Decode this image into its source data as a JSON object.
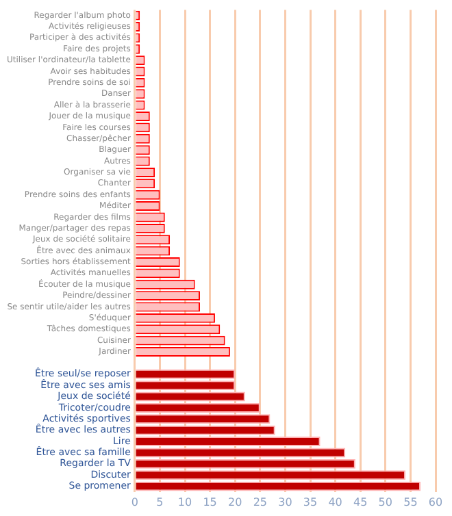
{
  "chart_data": {
    "type": "bar",
    "orientation": "horizontal",
    "categories": [
      "Regarder l'album photo",
      "Activités religieuses",
      "Participer à des activités",
      "Faire des projets",
      "Utiliser l'ordinateur/la tablette",
      "Avoir ses habitudes",
      "Prendre soins de soi",
      "Danser",
      "Aller à la brasserie",
      "Jouer de la musique",
      "Faire les courses",
      "Chasser/pêcher",
      "Blaguer",
      "Autres",
      "Organiser sa vie",
      "Chanter",
      "Prendre soins des enfants",
      "Méditer",
      "Regarder des films",
      "Manger/partager des repas",
      "Jeux de société solitaire",
      "Être avec des animaux",
      "Sorties hors établissement",
      "Activités manuelles",
      "Écouter de la musique",
      "Peindre/dessiner",
      "Se sentir utile/aider les autres",
      "S'éduquer",
      "Tâches domestiques",
      "Cuisiner",
      "Jardiner",
      null,
      "Être seul/se reposer",
      "Être avec ses amis",
      "Jeux de société",
      "Tricoter/coudre",
      "Activités sportives",
      "Être avec les autres",
      "Lire",
      "Être avec sa famille",
      "Regarder la TV",
      "Discuter",
      "Se promener"
    ],
    "series": [
      {
        "color": "#ffbfbf",
        "values": [
          1,
          1,
          1,
          1,
          2,
          2,
          2,
          2,
          2,
          3,
          3,
          3,
          3,
          3,
          4,
          4,
          5,
          5,
          6,
          6,
          7,
          7,
          9,
          9,
          12,
          13,
          13,
          16,
          17,
          18,
          19,
          null,
          null,
          null,
          null,
          null,
          null,
          null,
          null,
          null,
          null,
          null,
          null
        ]
      },
      {
        "color": "#c00000",
        "values": [
          null,
          null,
          null,
          null,
          null,
          null,
          null,
          null,
          null,
          null,
          null,
          null,
          null,
          null,
          null,
          null,
          null,
          null,
          null,
          null,
          null,
          null,
          null,
          null,
          null,
          null,
          null,
          null,
          null,
          null,
          null,
          null,
          20,
          20,
          22,
          25,
          27,
          28,
          37,
          42,
          44,
          54,
          57
        ]
      }
    ],
    "xlim": [
      0,
      60
    ],
    "xticks": [
      0,
      5,
      10,
      15,
      20,
      25,
      30,
      35,
      40,
      45,
      50,
      55,
      60
    ],
    "grid": "x",
    "legend": false
  }
}
